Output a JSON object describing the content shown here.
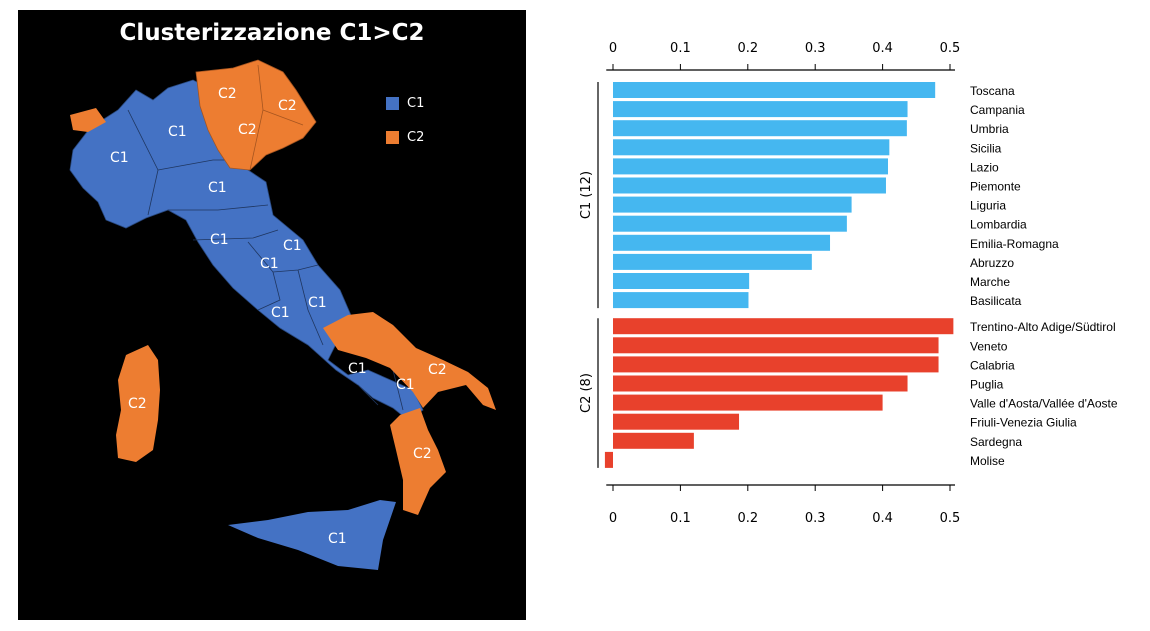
{
  "map": {
    "title": "Clusterizzazione C1>C2",
    "legend": [
      {
        "label": "C1",
        "color": "#4472c4"
      },
      {
        "label": "C2",
        "color": "#ed7d31"
      }
    ],
    "region_labels": [
      "C1",
      "C1",
      "C1",
      "C1",
      "C1",
      "C1",
      "C1",
      "C1",
      "C1",
      "C1",
      "C1",
      "C1",
      "C2",
      "C2",
      "C2",
      "C2",
      "C2",
      "C2"
    ]
  },
  "chart_data": {
    "type": "bar",
    "orientation": "horizontal",
    "xlim": [
      0,
      0.5
    ],
    "xticks": [
      "0",
      "0.1",
      "0.2",
      "0.3",
      "0.4",
      "0.5"
    ],
    "groups": [
      {
        "name": "C1 (12)",
        "color": "#45b7f0",
        "categories": [
          "Toscana",
          "Campania",
          "Umbria",
          "Sicilia",
          "Lazio",
          "Piemonte",
          "Liguria",
          "Lombardia",
          "Emilia-Romagna",
          "Abruzzo",
          "Marche",
          "Basilicata"
        ],
        "values": [
          0.478,
          0.437,
          0.436,
          0.41,
          0.408,
          0.405,
          0.354,
          0.347,
          0.322,
          0.295,
          0.202,
          0.201
        ]
      },
      {
        "name": "C2 (8)",
        "color": "#e8412c",
        "categories": [
          "Trentino-Alto Adige/Südtirol",
          "Veneto",
          "Calabria",
          "Puglia",
          "Valle d'Aosta/Vallée d'Aoste",
          "Friuli-Venezia Giulia",
          "Sardegna",
          "Molise"
        ],
        "values": [
          0.505,
          0.483,
          0.483,
          0.437,
          0.4,
          0.187,
          0.12,
          -0.012
        ]
      }
    ]
  }
}
